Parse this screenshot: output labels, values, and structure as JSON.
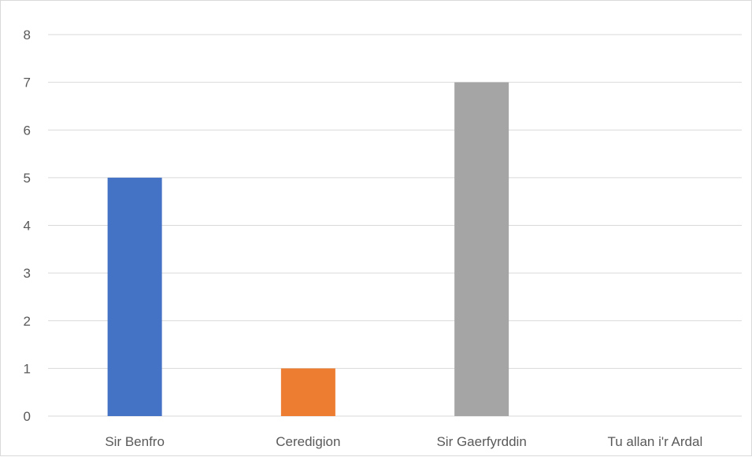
{
  "chart_data": {
    "type": "bar",
    "categories": [
      "Sir Benfro",
      "Ceredigion",
      "Sir Gaerfyrddin",
      "Tu allan i'r Ardal"
    ],
    "values": [
      5,
      1,
      7,
      0
    ],
    "colors": [
      "#4472c4",
      "#ed7d31",
      "#a5a5a5",
      "#ffc000"
    ],
    "title": "",
    "xlabel": "",
    "ylabel": "",
    "ylim": [
      0,
      8
    ],
    "yticks": [
      "0",
      "1",
      "2",
      "3",
      "4",
      "5",
      "6",
      "7",
      "8"
    ],
    "grid": true,
    "gridline_color": "#d9d9d9",
    "legend": "none"
  }
}
